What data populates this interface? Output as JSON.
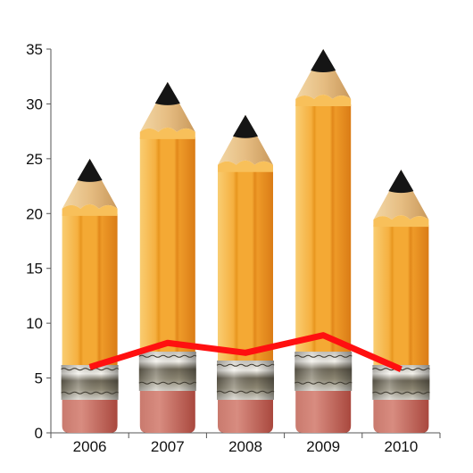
{
  "chart_data": {
    "type": "bar",
    "style": "pencil bars with line overlay",
    "categories": [
      "2006",
      "2007",
      "2008",
      "2009",
      "2010"
    ],
    "series": [
      {
        "values": [
          25,
          32,
          29,
          35,
          24
        ]
      },
      {
        "values": [
          6,
          8.2,
          7.3,
          8.9,
          5.8
        ]
      }
    ],
    "ylim": [
      0,
      35
    ],
    "yticks": [
      0,
      5,
      10,
      15,
      20,
      25,
      30,
      35
    ],
    "grid": false,
    "legend": "none",
    "title": "",
    "xlabel": "",
    "ylabel": "",
    "colors": {
      "pencil_body": "#F0A22A",
      "pencil_body_light": "#F8C05A",
      "pencil_body_dark": "#D9821C",
      "wood": "#E9C38A",
      "lead": "#151515",
      "ferrule": "#8A8270",
      "eraser": "#C0665A",
      "line": "#FF1010",
      "axis": "#555555"
    }
  }
}
